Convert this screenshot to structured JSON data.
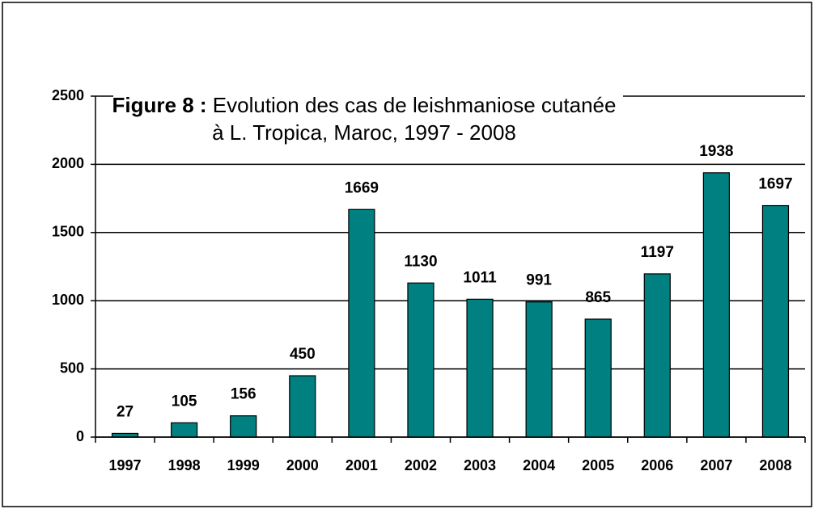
{
  "chart_data": {
    "type": "bar",
    "title_bold": "Figure 8 :",
    "title": "Evolution des cas de leishmaniose  cutanée",
    "subtitle": "à L. Tropica, Maroc, 1997 - 2008",
    "categories": [
      "1997",
      "1998",
      "1999",
      "2000",
      "2001",
      "2002",
      "2003",
      "2004",
      "2005",
      "2006",
      "2007",
      "2008"
    ],
    "values": [
      27,
      105,
      156,
      450,
      1669,
      1130,
      1011,
      991,
      865,
      1197,
      1938,
      1697
    ],
    "color": "#008080",
    "ylim": [
      0,
      2500
    ],
    "yticks": [
      0,
      500,
      1000,
      1500,
      2000,
      2500
    ],
    "grid": true
  }
}
